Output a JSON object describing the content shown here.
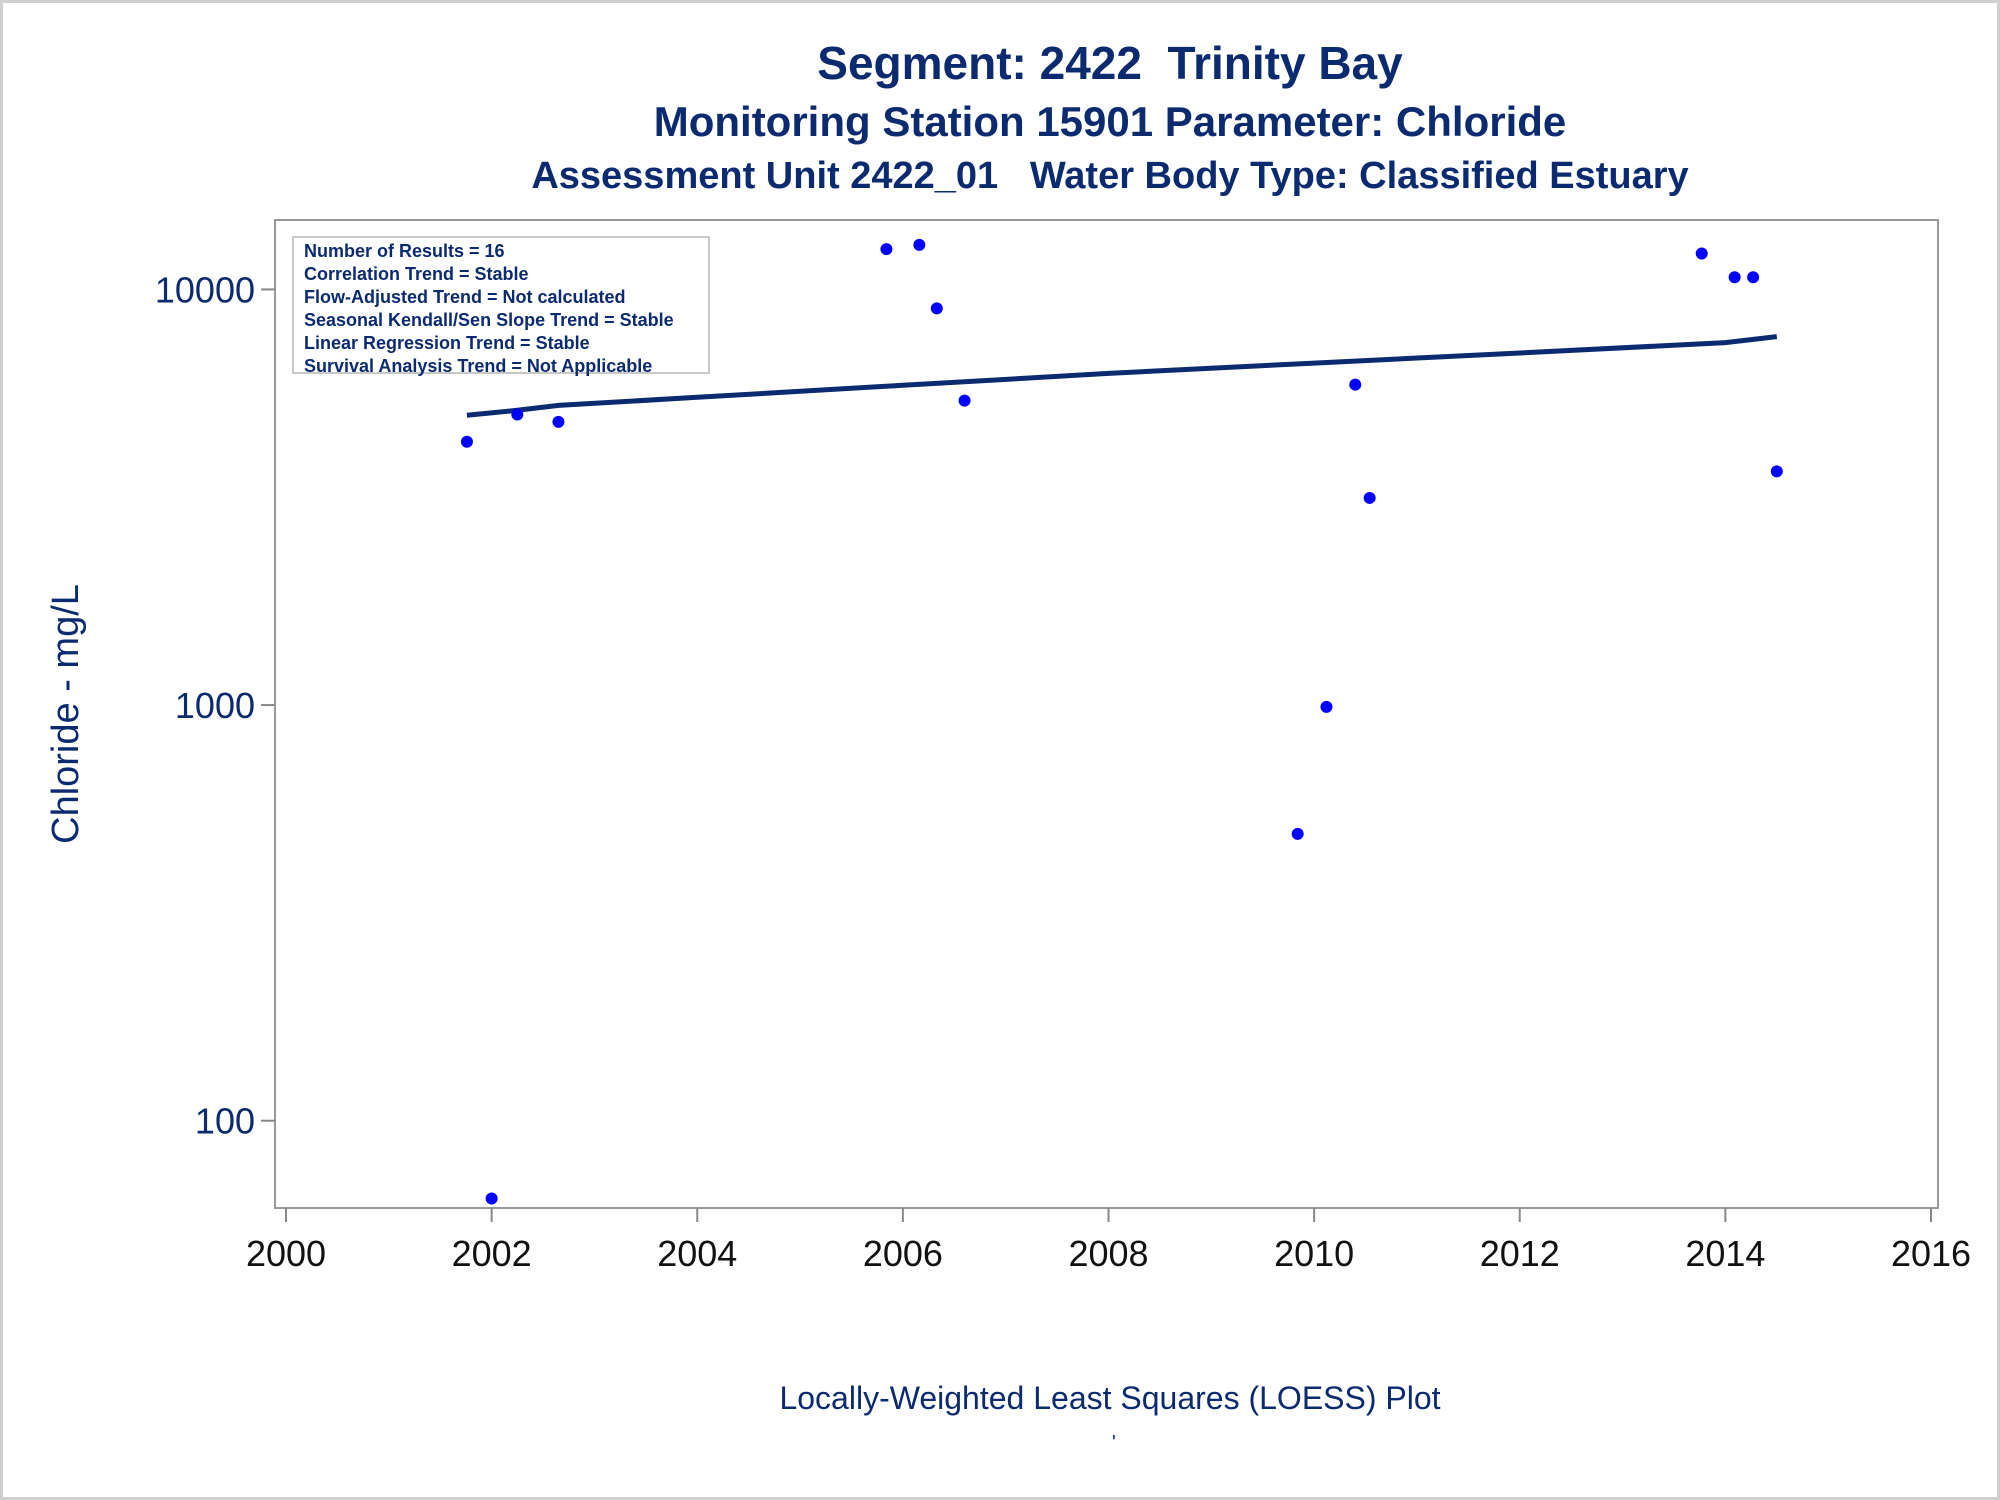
{
  "titles": {
    "line1": "Segment: 2422  Trinity Bay",
    "line2": "Monitoring Station 15901 Parameter: Chloride",
    "line3": "Assessment Unit 2422_01   Water Body Type: Classified Estuary"
  },
  "stats_box": [
    "Number of Results = 16",
    "Correlation Trend = Stable",
    "Flow-Adjusted Trend = Not calculated",
    "Seasonal Kendall/Sen Slope Trend = Stable",
    "Linear Regression Trend = Stable",
    "Survival Analysis Trend = Not Applicable"
  ],
  "footnote": "Locally-Weighted Least Squares (LOESS) Plot",
  "footnote_mark": "'",
  "colors": {
    "text": "#0b2a6f",
    "points": "#0000ff",
    "loess": "#0b2a6f",
    "axis": "#888888"
  },
  "chart_data": {
    "type": "scatter",
    "ylabel": "Chloride - mg/L",
    "xlabel": "",
    "yscale": "log",
    "xlim": [
      2000,
      2016
    ],
    "ylim_log10": [
      1.79,
      4.167
    ],
    "x_ticks": [
      2000,
      2002,
      2004,
      2006,
      2008,
      2010,
      2012,
      2014,
      2016
    ],
    "y_ticks": [
      100,
      1000,
      10000
    ],
    "points": [
      {
        "x": 2001.76,
        "y": 4300
      },
      {
        "x": 2002.0,
        "y": 65
      },
      {
        "x": 2002.25,
        "y": 5000
      },
      {
        "x": 2002.65,
        "y": 4800
      },
      {
        "x": 2005.84,
        "y": 12500
      },
      {
        "x": 2006.16,
        "y": 12800
      },
      {
        "x": 2006.33,
        "y": 9000
      },
      {
        "x": 2006.6,
        "y": 5400
      },
      {
        "x": 2009.84,
        "y": 490
      },
      {
        "x": 2010.12,
        "y": 990
      },
      {
        "x": 2010.4,
        "y": 5900
      },
      {
        "x": 2010.54,
        "y": 3150
      },
      {
        "x": 2013.77,
        "y": 12200
      },
      {
        "x": 2014.09,
        "y": 10700
      },
      {
        "x": 2014.27,
        "y": 10700
      },
      {
        "x": 2014.5,
        "y": 3650
      }
    ],
    "loess": [
      {
        "x": 2001.76,
        "y": 4980
      },
      {
        "x": 2002.25,
        "y": 5120
      },
      {
        "x": 2002.65,
        "y": 5260
      },
      {
        "x": 2004.0,
        "y": 5500
      },
      {
        "x": 2006.0,
        "y": 5880
      },
      {
        "x": 2008.0,
        "y": 6280
      },
      {
        "x": 2010.0,
        "y": 6650
      },
      {
        "x": 2012.0,
        "y": 7030
      },
      {
        "x": 2014.0,
        "y": 7450
      },
      {
        "x": 2014.5,
        "y": 7700
      }
    ]
  }
}
